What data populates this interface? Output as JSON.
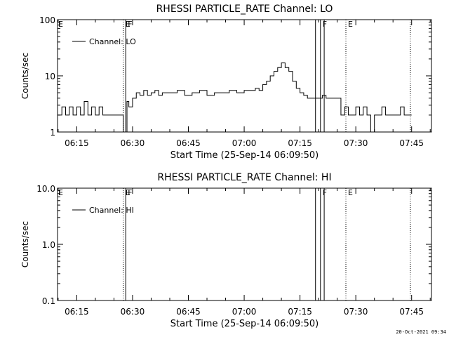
{
  "stamp": "20-Oct-2021 09:34",
  "chart_data": [
    {
      "type": "line",
      "title": "RHESSI PARTICLE_RATE Channel: LO",
      "xlabel": "Start Time (25-Sep-14 06:09:50)",
      "ylabel": "Counts/sec",
      "yscale": "log",
      "ylim": [
        1,
        100
      ],
      "xlim": [
        "06:09:50",
        "07:50:20"
      ],
      "x_tick_labels": [
        "06:15",
        "06:30",
        "06:45",
        "07:00",
        "07:15",
        "07:30",
        "07:45"
      ],
      "y_tick_labels": [
        "1",
        "10",
        "100"
      ],
      "legend": {
        "position": "top-left"
      },
      "series": [
        {
          "name": "Channel: LO",
          "x": [
            "06:09:50",
            "06:11:00",
            "06:12:00",
            "06:13:00",
            "06:14:00",
            "06:15:00",
            "06:16:00",
            "06:17:00",
            "06:18:00",
            "06:19:00",
            "06:20:00",
            "06:21:00",
            "06:22:00",
            "06:23:00",
            "06:24:00",
            "06:25:00",
            "06:26:00",
            "06:27:00",
            "06:27:30",
            "06:28:00",
            "06:28:30",
            "06:29:00",
            "06:30:00",
            "06:31:00",
            "06:32:00",
            "06:33:00",
            "06:34:00",
            "06:35:00",
            "06:36:00",
            "06:37:00",
            "06:38:00",
            "06:40:00",
            "06:42:00",
            "06:44:00",
            "06:46:00",
            "06:48:00",
            "06:50:00",
            "06:52:00",
            "06:54:00",
            "06:56:00",
            "06:58:00",
            "07:00:00",
            "07:02:00",
            "07:03:00",
            "07:04:00",
            "07:05:00",
            "07:06:00",
            "07:07:00",
            "07:08:00",
            "07:09:00",
            "07:10:00",
            "07:11:00",
            "07:12:00",
            "07:13:00",
            "07:14:00",
            "07:15:00",
            "07:16:00",
            "07:17:00",
            "07:18:00",
            "07:19:00",
            "07:20:00",
            "07:21:00",
            "07:22:00",
            "07:23:00",
            "07:24:00",
            "07:25:00",
            "07:26:00",
            "07:27:00",
            "07:28:00",
            "07:29:00",
            "07:30:00",
            "07:31:00",
            "07:32:00",
            "07:33:00",
            "07:34:00",
            "07:35:00",
            "07:36:00",
            "07:37:00",
            "07:38:00",
            "07:39:00",
            "07:40:00",
            "07:41:00",
            "07:42:00",
            "07:43:00",
            "07:44:00",
            "07:45:00"
          ],
          "values": [
            2,
            2.8,
            2,
            2.8,
            2,
            2.8,
            2,
            3.5,
            2,
            2.8,
            2,
            2.8,
            2,
            2,
            2,
            2,
            2,
            2,
            1,
            1,
            3.5,
            2.8,
            4,
            5,
            4.5,
            5.5,
            4.5,
            5,
            5.5,
            4.5,
            5,
            5,
            5.5,
            4.5,
            5,
            5.5,
            4.5,
            5,
            5,
            5.5,
            5,
            5.5,
            5.5,
            6,
            5.5,
            7,
            8,
            10,
            12,
            14,
            17,
            14,
            12,
            8,
            6,
            5,
            4.5,
            4,
            4,
            4,
            4,
            4.5,
            4,
            4,
            4,
            4,
            2,
            2.8,
            2,
            2,
            2.8,
            2,
            2.8,
            2,
            1,
            2,
            2,
            2.8,
            2,
            2,
            2,
            2,
            2.8,
            2,
            2,
            2
          ]
        }
      ],
      "vlines": [
        {
          "t": "06:27:30",
          "style": "dotted",
          "label": "E"
        },
        {
          "t": "06:28:10",
          "style": "solid",
          "label": "F"
        },
        {
          "t": "07:19:10",
          "style": "solid",
          "label": ""
        },
        {
          "t": "07:20:30",
          "style": "solid",
          "label": "F"
        },
        {
          "t": "07:21:30",
          "style": "solid",
          "label": ""
        },
        {
          "t": "07:27:20",
          "style": "dotted",
          "label": "E"
        },
        {
          "t": "07:44:40",
          "style": "dotted",
          "label": ""
        }
      ]
    },
    {
      "type": "line",
      "title": "RHESSI PARTICLE_RATE Channel: HI",
      "xlabel": "Start Time (25-Sep-14 06:09:50)",
      "ylabel": "Counts/sec",
      "yscale": "log",
      "ylim": [
        0.1,
        10
      ],
      "xlim": [
        "06:09:50",
        "07:50:20"
      ],
      "x_tick_labels": [
        "06:15",
        "06:30",
        "06:45",
        "07:00",
        "07:15",
        "07:30",
        "07:45"
      ],
      "y_tick_labels": [
        "0.1",
        "1.0",
        "10.0"
      ],
      "legend": {
        "position": "top-left"
      },
      "series": [
        {
          "name": "Channel: HI",
          "x": [],
          "values": []
        }
      ],
      "vlines": [
        {
          "t": "06:27:30",
          "style": "dotted",
          "label": "E"
        },
        {
          "t": "06:28:10",
          "style": "solid",
          "label": "F"
        },
        {
          "t": "07:19:10",
          "style": "solid",
          "label": ""
        },
        {
          "t": "07:20:30",
          "style": "solid",
          "label": "F"
        },
        {
          "t": "07:21:30",
          "style": "solid",
          "label": ""
        },
        {
          "t": "07:27:20",
          "style": "dotted",
          "label": "E"
        },
        {
          "t": "07:44:40",
          "style": "dotted",
          "label": ""
        }
      ]
    }
  ]
}
